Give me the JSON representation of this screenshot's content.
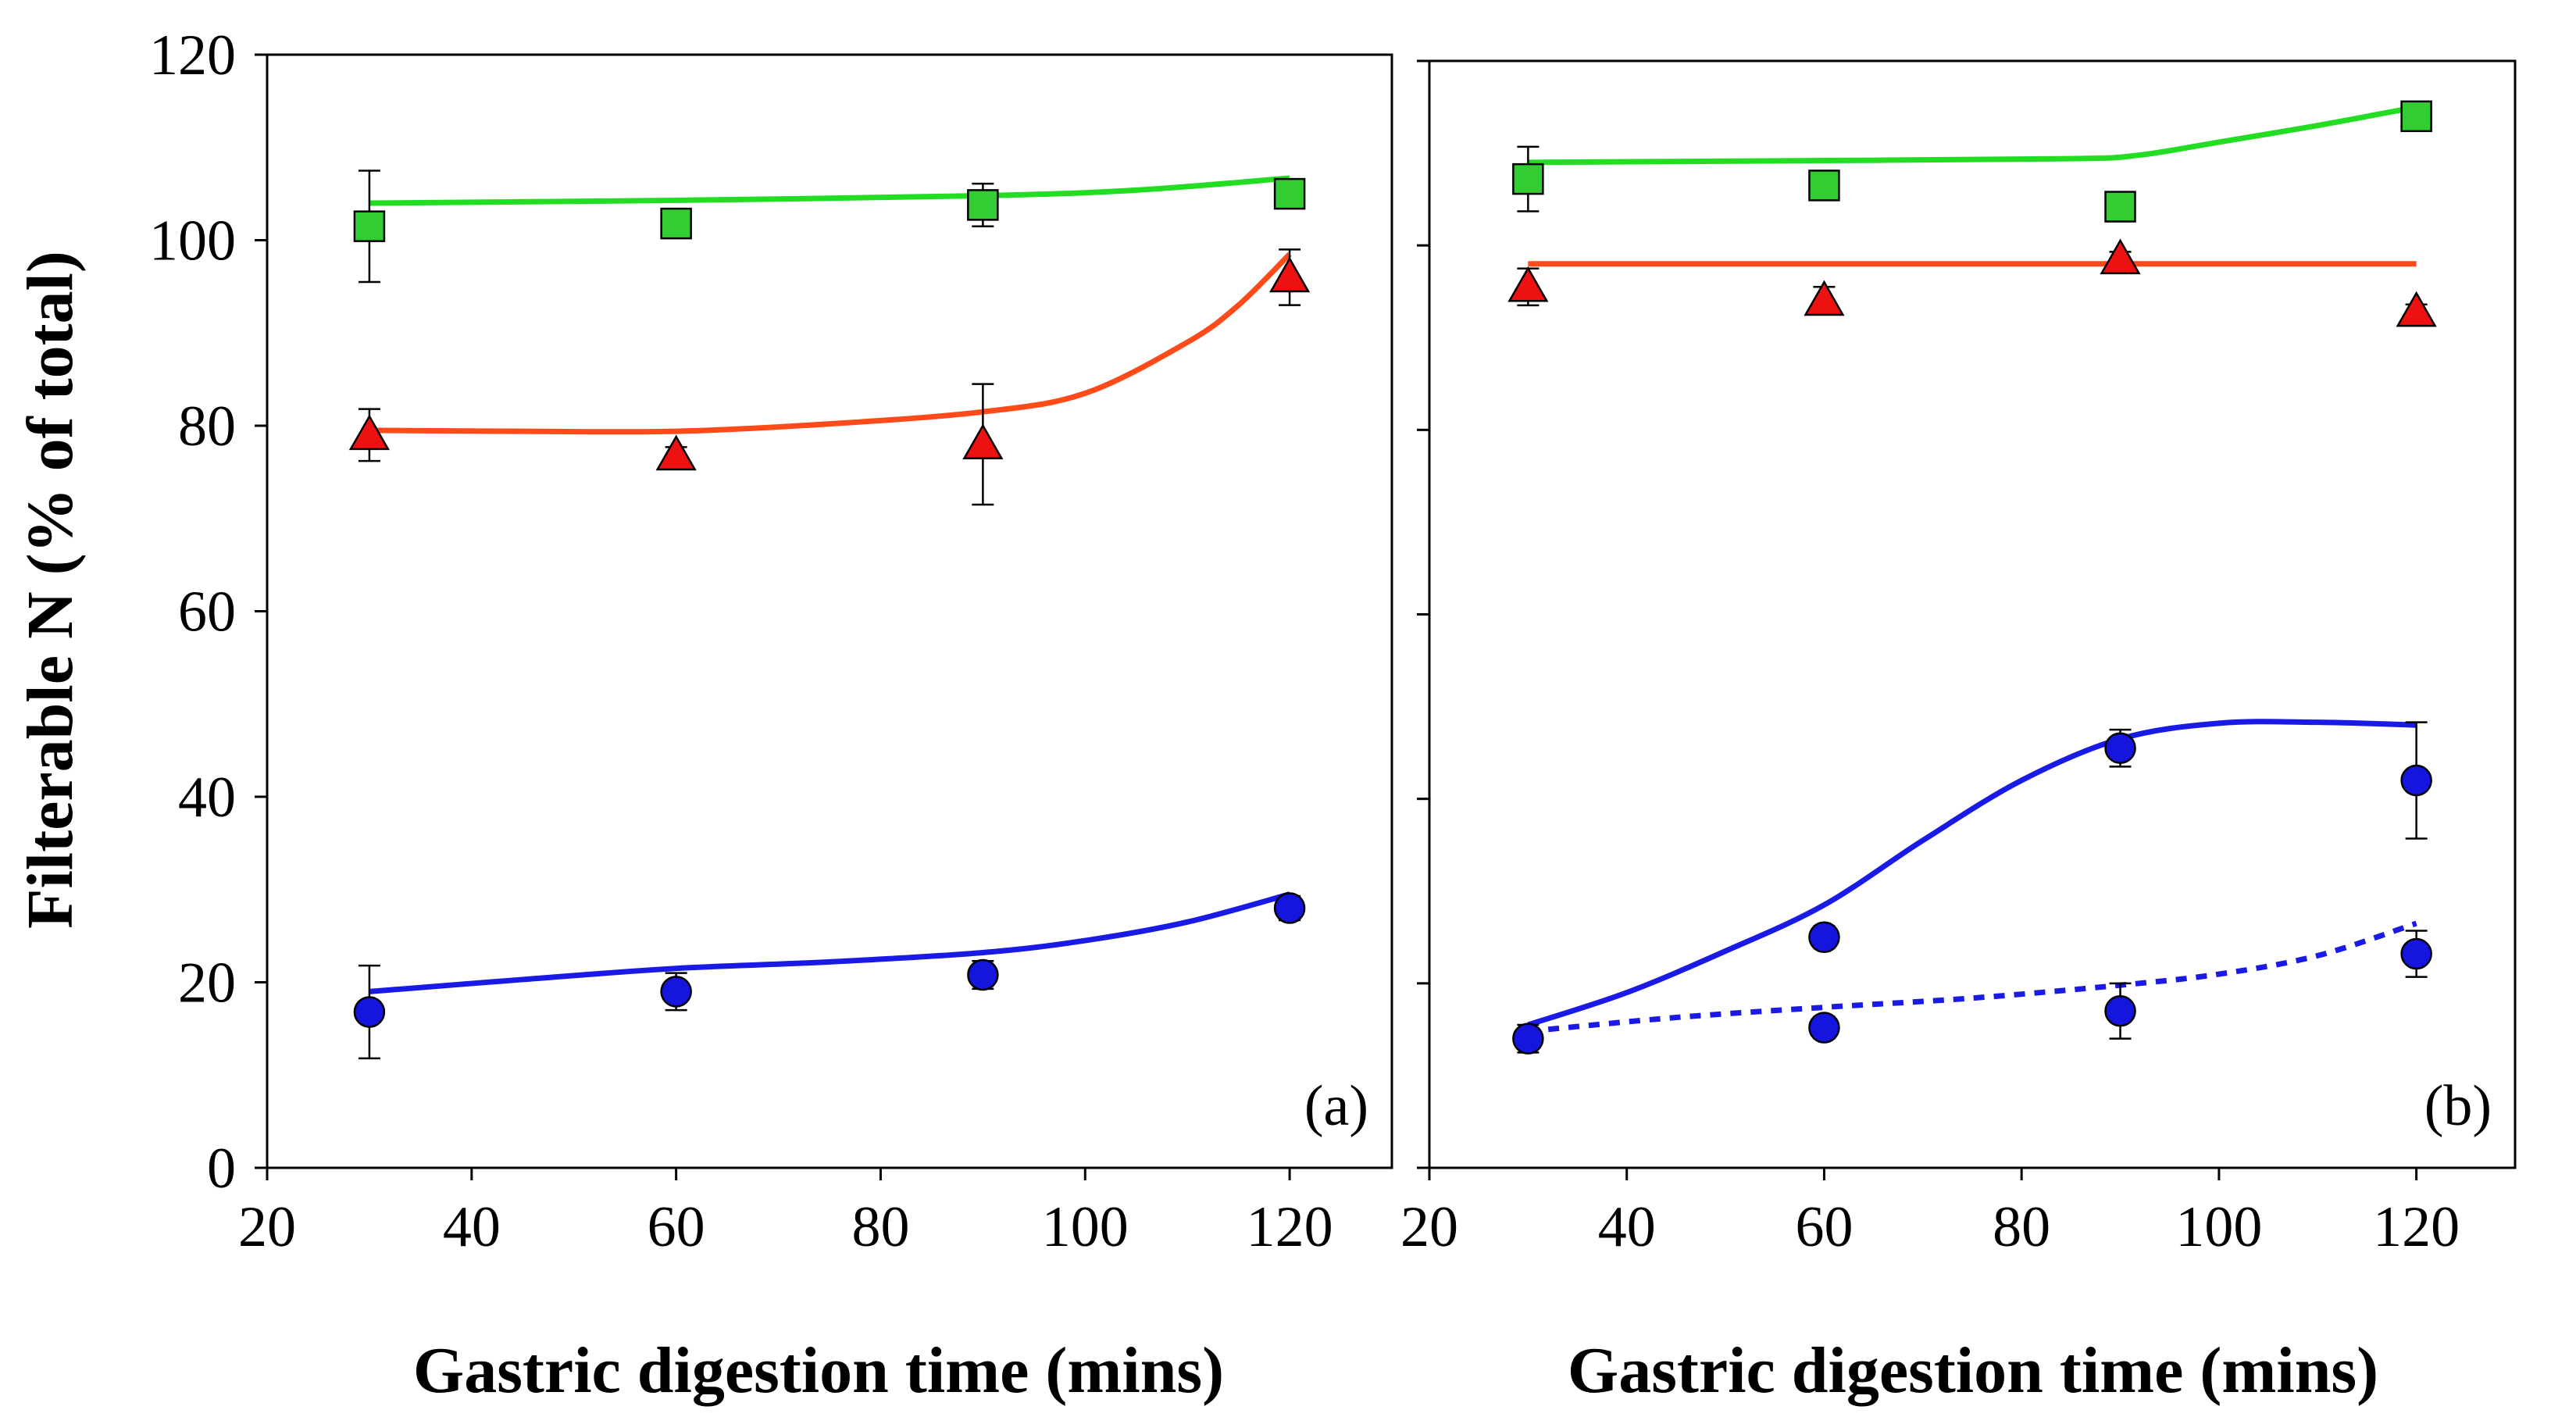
{
  "chart_data": [
    {
      "type": "scatter",
      "panel": "a",
      "panel_label": "(a)",
      "xlabel": "Gastric digestion time (mins)",
      "ylabel": "Filterable N (% of total)",
      "xlim": [
        20,
        130
      ],
      "ylim": [
        0,
        120
      ],
      "x_ticks": [
        20,
        40,
        60,
        80,
        100,
        120
      ],
      "y_ticks": [
        0,
        20,
        40,
        60,
        80,
        100,
        120
      ],
      "series": [
        {
          "name": "green squares",
          "marker": "square",
          "color": "#33cc33",
          "points": [
            {
              "x": 30,
              "y": 101.5,
              "err": 6.0
            },
            {
              "x": 60,
              "y": 101.8,
              "err": 1.0
            },
            {
              "x": 90,
              "y": 103.8,
              "err": 2.3
            },
            {
              "x": 120,
              "y": 105.0,
              "err": 1.0
            }
          ],
          "fit_color": "#22dd22",
          "fit_style": "solid",
          "fit": [
            [
              30,
              104.0
            ],
            [
              60,
              104.3
            ],
            [
              90,
              104.8
            ],
            [
              105,
              105.4
            ],
            [
              120,
              106.7
            ]
          ]
        },
        {
          "name": "red triangles",
          "marker": "triangle",
          "color": "#ee1111",
          "points": [
            {
              "x": 30,
              "y": 79.0,
              "err": 2.8
            },
            {
              "x": 60,
              "y": 76.8,
              "err": 0.9
            },
            {
              "x": 90,
              "y": 78.0,
              "err": 6.5
            },
            {
              "x": 120,
              "y": 96.0,
              "err": 3.0
            }
          ],
          "fit_color": "#ff4a1a",
          "fit_style": "solid",
          "fit": [
            [
              30,
              79.5
            ],
            [
              45,
              79.4
            ],
            [
              60,
              79.4
            ],
            [
              75,
              80.2
            ],
            [
              90,
              81.5
            ],
            [
              100,
              83.5
            ],
            [
              110,
              89.0
            ],
            [
              115,
              93.0
            ],
            [
              120,
              98.5
            ]
          ]
        },
        {
          "name": "blue circles",
          "marker": "circle",
          "color": "#1515dd",
          "points": [
            {
              "x": 30,
              "y": 16.8,
              "err": 5.0
            },
            {
              "x": 60,
              "y": 19.0,
              "err": 2.0
            },
            {
              "x": 90,
              "y": 20.8,
              "err": 1.5
            },
            {
              "x": 120,
              "y": 28.0,
              "err": 1.3
            }
          ],
          "fit_color": "#1a1ae6",
          "fit_style": "solid",
          "fit": [
            [
              30,
              19.0
            ],
            [
              45,
              20.3
            ],
            [
              60,
              21.5
            ],
            [
              75,
              22.2
            ],
            [
              90,
              23.2
            ],
            [
              100,
              24.5
            ],
            [
              110,
              26.5
            ],
            [
              120,
              29.5
            ]
          ]
        }
      ]
    },
    {
      "type": "scatter",
      "panel": "b",
      "panel_label": "(b)",
      "xlabel": "Gastric digestion time (mins)",
      "ylabel": "",
      "xlim": [
        20,
        130
      ],
      "ylim": [
        0,
        120
      ],
      "x_ticks": [
        20,
        40,
        60,
        80,
        100,
        120
      ],
      "y_ticks": [
        0,
        20,
        40,
        60,
        80,
        100,
        120
      ],
      "series": [
        {
          "name": "green squares",
          "marker": "square",
          "color": "#33cc33",
          "points": [
            {
              "x": 30,
              "y": 107.2,
              "err": 3.5
            },
            {
              "x": 60,
              "y": 106.5,
              "err": 1.0
            },
            {
              "x": 90,
              "y": 104.2,
              "err": 0.8
            },
            {
              "x": 120,
              "y": 114.0,
              "err": 0.8
            }
          ],
          "fit_color": "#22dd22",
          "fit_style": "solid",
          "fit": [
            [
              30,
              109.0
            ],
            [
              60,
              109.2
            ],
            [
              85,
              109.4
            ],
            [
              92,
              109.8
            ],
            [
              100,
              111.2
            ],
            [
              110,
              113.0
            ],
            [
              120,
              115.0
            ]
          ]
        },
        {
          "name": "red triangles",
          "marker": "triangle",
          "color": "#ee1111",
          "points": [
            {
              "x": 30,
              "y": 95.5,
              "err": 2.0
            },
            {
              "x": 60,
              "y": 94.0,
              "err": 1.5
            },
            {
              "x": 90,
              "y": 98.5,
              "err": 0.8
            },
            {
              "x": 120,
              "y": 92.8,
              "err": 0.8
            }
          ],
          "fit_color": "#ff4a1a",
          "fit_style": "solid",
          "fit": [
            [
              30,
              98.0
            ],
            [
              120,
              98.0
            ]
          ]
        },
        {
          "name": "blue circles",
          "marker": "circle",
          "color": "#1515dd",
          "points": [
            {
              "x": 30,
              "y": 14.0,
              "err": 1.5
            },
            {
              "x": 60,
              "y": 25.0,
              "err": 1.2
            },
            {
              "x": 90,
              "y": 45.5,
              "err": 2.0
            },
            {
              "x": 120,
              "y": 42.0,
              "err": 6.3
            }
          ],
          "fit_color": "#1a1ae6",
          "fit_style": "solid",
          "fit": [
            [
              30,
              15.5
            ],
            [
              40,
              19.0
            ],
            [
              50,
              23.5
            ],
            [
              60,
              28.5
            ],
            [
              70,
              35.5
            ],
            [
              80,
              42.0
            ],
            [
              90,
              46.5
            ],
            [
              100,
              48.2
            ],
            [
              110,
              48.3
            ],
            [
              120,
              48.0
            ]
          ]
        },
        {
          "name": "blue circles (second set)",
          "marker": "circle",
          "color": "#1515dd",
          "points": [
            {
              "x": 60,
              "y": 15.2,
              "err": 1.2
            },
            {
              "x": 90,
              "y": 17.0,
              "err": 3.0
            },
            {
              "x": 120,
              "y": 23.2,
              "err": 2.5
            }
          ],
          "fit_color": "#1a1ae6",
          "fit_style": "dotted",
          "fit": [
            [
              30,
              14.8
            ],
            [
              45,
              16.3
            ],
            [
              60,
              17.4
            ],
            [
              75,
              18.4
            ],
            [
              90,
              19.8
            ],
            [
              100,
              21.0
            ],
            [
              110,
              23.0
            ],
            [
              120,
              26.5
            ]
          ]
        }
      ]
    }
  ]
}
